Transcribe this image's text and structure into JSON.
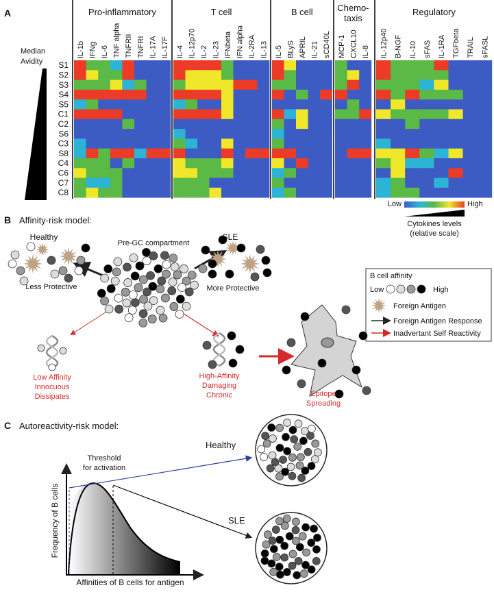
{
  "panel_a": {
    "label": "A",
    "median_label": [
      "Median",
      "Avidity"
    ],
    "groups": [
      {
        "name": [
          "Pro-inflammatory"
        ],
        "columns": [
          "IL-1b",
          "IFNg",
          "IL-6",
          "TNF alpha",
          "TNFRII",
          "TNFRI",
          "IL-17A",
          "IL-17F"
        ]
      },
      {
        "name": [
          "T cell"
        ],
        "columns": [
          "IL-4",
          "IL-12p70",
          "IL-2",
          "IL-23",
          "IFNbeta",
          "IFN alpha",
          "IL-2RA",
          "IL-13"
        ]
      },
      {
        "name": [
          "B cell"
        ],
        "columns": [
          "IL-5",
          "BLyS",
          "APRIL",
          "IL-21",
          "sCD40L"
        ]
      },
      {
        "name": [
          "Chemo-",
          "taxis"
        ],
        "columns": [
          "MCP-1",
          "CXCL10",
          "IL-8"
        ]
      },
      {
        "name": [
          "Regulatory"
        ],
        "columns": [
          "IL-12p40",
          "B-NGF",
          "IL-10",
          "sFAS",
          "IL-1RA",
          "TGFbeta",
          "TRAIL",
          "sFASL"
        ]
      }
    ],
    "rows": [
      "S1",
      "S2",
      "S3",
      "S4",
      "S5",
      "C1",
      "C2",
      "S6",
      "C3",
      "S8",
      "C4",
      "C6",
      "C7",
      "C8"
    ],
    "row_colors": [
      "#d42a2a",
      "#d42a2a",
      "#d42a2a",
      "#d42a2a",
      "#d42a2a",
      "#111111",
      "#111111",
      "#d42a2a",
      "#111111",
      "#d42a2a",
      "#111111",
      "#111111",
      "#111111",
      "#111111"
    ],
    "values": [
      [
        4,
        2,
        2,
        1,
        4,
        0,
        0,
        0,
        4,
        4,
        4,
        4,
        2,
        0,
        0,
        0,
        4,
        3,
        0,
        0,
        0,
        2,
        0,
        0,
        4,
        2,
        2,
        2,
        4,
        0,
        0,
        0
      ],
      [
        4,
        3,
        2,
        2,
        4,
        0,
        0,
        0,
        4,
        3,
        3,
        3,
        2,
        0,
        0,
        0,
        4,
        2,
        0,
        0,
        0,
        2,
        3,
        0,
        4,
        2,
        2,
        2,
        2,
        0,
        0,
        0
      ],
      [
        2,
        2,
        2,
        3,
        1,
        2,
        0,
        0,
        2,
        3,
        3,
        3,
        3,
        4,
        4,
        0,
        2,
        2,
        0,
        0,
        0,
        2,
        4,
        0,
        2,
        2,
        2,
        1,
        3,
        0,
        0,
        0
      ],
      [
        4,
        4,
        4,
        4,
        4,
        4,
        0,
        0,
        4,
        4,
        4,
        4,
        3,
        0,
        0,
        0,
        4,
        0,
        2,
        0,
        4,
        4,
        0,
        0,
        4,
        2,
        4,
        2,
        2,
        2,
        0,
        0
      ],
      [
        1,
        2,
        0,
        0,
        0,
        0,
        0,
        0,
        1,
        2,
        0,
        0,
        3,
        0,
        0,
        0,
        0,
        0,
        0,
        0,
        0,
        0,
        2,
        0,
        0,
        3,
        0,
        0,
        0,
        0,
        0,
        0
      ],
      [
        4,
        4,
        4,
        4,
        0,
        0,
        0,
        0,
        4,
        4,
        4,
        4,
        3,
        0,
        0,
        0,
        4,
        1,
        3,
        0,
        0,
        2,
        2,
        4,
        3,
        2,
        2,
        2,
        2,
        3,
        0,
        0
      ],
      [
        0,
        0,
        0,
        0,
        2,
        0,
        0,
        0,
        0,
        0,
        0,
        0,
        0,
        0,
        0,
        0,
        2,
        0,
        3,
        0,
        0,
        0,
        0,
        0,
        0,
        0,
        2,
        0,
        0,
        0,
        0,
        0
      ],
      [
        0,
        0,
        0,
        0,
        0,
        0,
        0,
        0,
        1,
        0,
        0,
        0,
        0,
        0,
        0,
        0,
        1,
        0,
        0,
        0,
        0,
        0,
        0,
        0,
        0,
        0,
        0,
        0,
        0,
        0,
        0,
        0
      ],
      [
        1,
        0,
        0,
        0,
        0,
        0,
        0,
        0,
        2,
        1,
        0,
        0,
        3,
        0,
        0,
        0,
        2,
        0,
        0,
        0,
        0,
        0,
        0,
        0,
        1,
        0,
        0,
        0,
        0,
        0,
        0,
        0
      ],
      [
        1,
        4,
        2,
        4,
        4,
        1,
        4,
        4,
        4,
        0,
        0,
        0,
        4,
        0,
        4,
        4,
        4,
        4,
        0,
        0,
        0,
        0,
        4,
        4,
        3,
        3,
        4,
        2,
        1,
        3,
        0,
        0
      ],
      [
        2,
        2,
        2,
        0,
        2,
        0,
        0,
        0,
        3,
        2,
        2,
        2,
        3,
        0,
        0,
        0,
        3,
        0,
        4,
        0,
        0,
        0,
        0,
        0,
        2,
        3,
        1,
        1,
        0,
        0,
        0,
        0
      ],
      [
        3,
        2,
        2,
        2,
        0,
        0,
        0,
        0,
        3,
        3,
        2,
        2,
        2,
        0,
        0,
        0,
        1,
        2,
        0,
        0,
        0,
        0,
        0,
        0,
        0,
        3,
        0,
        0,
        0,
        4,
        0,
        0
      ],
      [
        2,
        1,
        1,
        2,
        0,
        0,
        0,
        0,
        2,
        2,
        2,
        0,
        0,
        0,
        0,
        0,
        2,
        0,
        0,
        0,
        0,
        0,
        0,
        0,
        1,
        2,
        0,
        0,
        1,
        0,
        0,
        0
      ],
      [
        2,
        3,
        2,
        2,
        0,
        0,
        0,
        0,
        2,
        2,
        2,
        3,
        0,
        0,
        0,
        0,
        1,
        2,
        0,
        0,
        0,
        0,
        0,
        0,
        1,
        2,
        2,
        0,
        0,
        0,
        0,
        0
      ]
    ],
    "colormap": [
      "#3c5cc4",
      "#2cb4d6",
      "#5bb946",
      "#f0e62a",
      "#ec3b26"
    ],
    "colorbar": {
      "low": "Low",
      "high": "High",
      "title": "Cytokines levels",
      "subtitle": "(relative scale)"
    }
  },
  "panel_b": {
    "label": "B",
    "title": "Affinity-risk model:",
    "healthy": "Healthy",
    "sle": "SLE",
    "compartment": "Pre-GC compartment",
    "less": "Less Protective",
    "more": "More Protective",
    "low_outcome": [
      "Low Affinity",
      "Innocuous",
      "Dissipates"
    ],
    "high_outcome": [
      "High-Affinity",
      "Damaging",
      "Chronic"
    ],
    "spreading": [
      "Epitope",
      "Spreading"
    ],
    "legend": {
      "title": "B cell affinity",
      "low": "Low",
      "high": "High",
      "antigen": "Foreign Antigen",
      "response": "Foreign Antigen Response",
      "self": "Inadvertant Self Reactivity"
    }
  },
  "panel_c": {
    "label": "C",
    "title": "Autoreactivity-risk model:",
    "threshold": [
      "Threshold",
      "for activation"
    ],
    "healthy": "Healthy",
    "sle": "SLE",
    "ylabel": "Frequency of B cells",
    "xlabel": "Affinities of B cells for antigen"
  }
}
